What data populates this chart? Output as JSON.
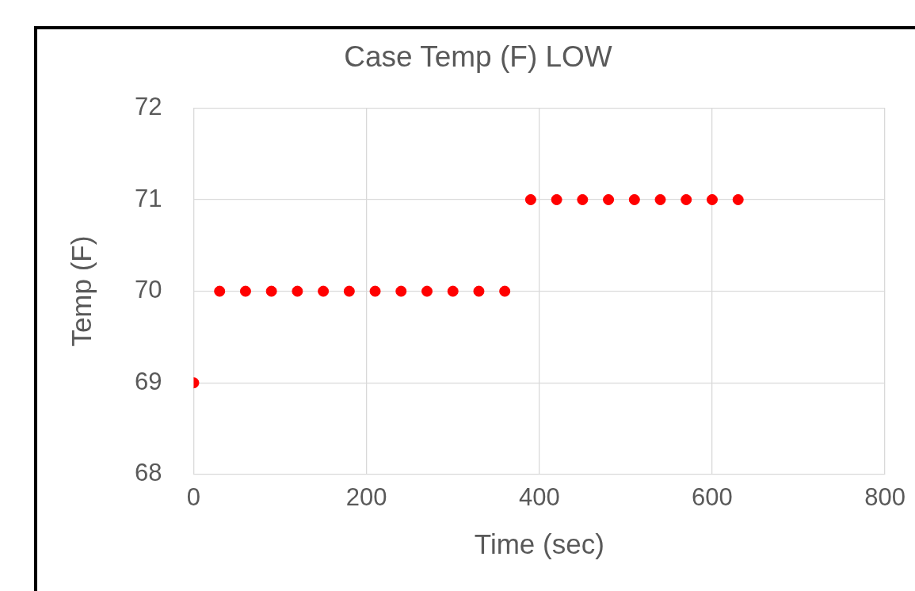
{
  "chart_data": {
    "type": "scatter",
    "title": "Case Temp (F) LOW",
    "xlabel": "Time (sec)",
    "ylabel": "Temp (F)",
    "x": [
      0,
      30,
      60,
      90,
      120,
      150,
      180,
      210,
      240,
      270,
      300,
      330,
      360,
      390,
      420,
      450,
      480,
      510,
      540,
      570,
      600,
      630
    ],
    "series": [
      {
        "color": "#ff0000",
        "values": [
          69,
          70,
          70,
          70,
          70,
          70,
          70,
          70,
          70,
          70,
          70,
          70,
          70,
          71,
          71,
          71,
          71,
          71,
          71,
          71,
          71,
          71
        ]
      }
    ],
    "xlim": [
      0,
      800
    ],
    "xticks": [
      0,
      200,
      400,
      600,
      800
    ],
    "ylim": [
      68,
      72
    ],
    "yticks": [
      68,
      69,
      70,
      71,
      72
    ],
    "grid": true,
    "legend": false,
    "marker": "circle"
  }
}
